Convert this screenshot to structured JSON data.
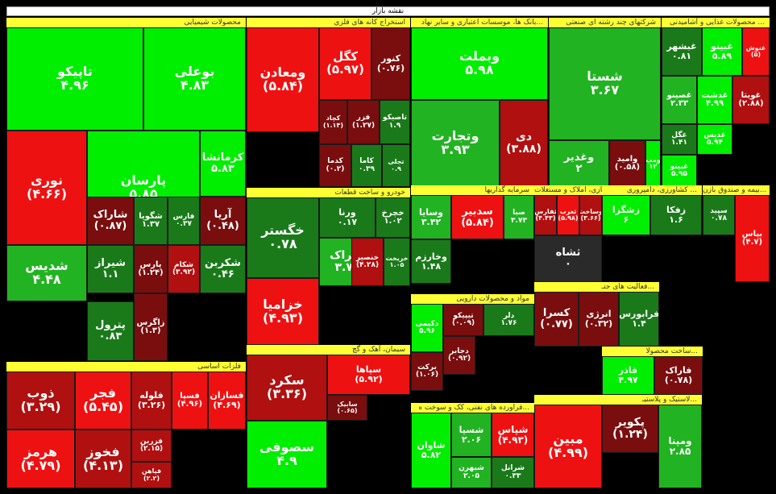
{
  "title": "نقشه بازار",
  "colors": {
    "up_strong": "#00ee00",
    "up_mid": "#22b322",
    "up_weak": "#1a7a1a",
    "down_weak": "#7a0e0e",
    "down_mid": "#b01010",
    "down_strong": "#ee1111",
    "neutral": "#2a2a2a",
    "header": "#ffff33"
  },
  "chart_data": {
    "type": "treemap",
    "sectors": [
      {
        "name": "محصولات شیمیایی",
        "stocks": [
          {
            "symbol": "تاپیکو",
            "change": 4.96
          },
          {
            "symbol": "بوعلی",
            "change": 4.83
          },
          {
            "symbol": "نوری",
            "change": -4.66
          },
          {
            "symbol": "پارسان",
            "change": 5.85
          },
          {
            "symbol": "کرمانشا",
            "change": 5.83
          },
          {
            "symbol": "شاراک",
            "change": -0.87
          },
          {
            "symbol": "شگویا",
            "change": 1.37
          },
          {
            "symbol": "فارس",
            "change": 0.37
          },
          {
            "symbol": "آریا",
            "change": -0.48
          },
          {
            "symbol": "شدیس",
            "change": 4.48
          },
          {
            "symbol": "پارس",
            "change": -1.24
          },
          {
            "symbol": "شکام",
            "change": -3.92
          },
          {
            "symbol": "شکربن",
            "change": 0.46
          },
          {
            "symbol": "شیراز",
            "change": 1.1
          },
          {
            "symbol": "شپیمیر",
            "change": 0.46
          },
          {
            "symbol": "پترول",
            "change": 0.83
          },
          {
            "symbol": "زاگرس",
            "change": -1.3
          },
          {
            "symbol": "خراساز",
            "change": 1.62
          }
        ]
      },
      {
        "name": "استخراج کانه های فلزی",
        "stocks": [
          {
            "symbol": "ومعادن",
            "change": -5.84
          },
          {
            "symbol": "کگل",
            "change": -5.97
          },
          {
            "symbol": "کنور",
            "change": -0.76
          },
          {
            "symbol": "کچاد",
            "change": -1.14
          },
          {
            "symbol": "فزر",
            "change": -1.27
          },
          {
            "symbol": "تاصیکو",
            "change": 1.9
          },
          {
            "symbol": "کدما",
            "change": -0.2
          },
          {
            "symbol": "کاما",
            "change": 0.39
          },
          {
            "symbol": "تجلی",
            "change": 0.9
          }
        ]
      },
      {
        "name": "بانک ها، موسسات اعتباری و سایر نهاد...",
        "stocks": [
          {
            "symbol": "وبملت",
            "change": 5.98
          },
          {
            "symbol": "وتجارت",
            "change": 3.93
          },
          {
            "symbol": "دی",
            "change": -3.88
          }
        ]
      },
      {
        "name": "شرکتهای چند رشته ای صنعتی",
        "stocks": [
          {
            "symbol": "شستا",
            "change": 3.67
          },
          {
            "symbol": "وغدیر",
            "change": 2
          },
          {
            "symbol": "وامید",
            "change": -0.58
          },
          {
            "symbol": "ومپ",
            "change": 12
          }
        ]
      },
      {
        "name": "محصولات غذایی و آشامیدنی ...",
        "stocks": [
          {
            "symbol": "غنوش",
            "change": -5
          },
          {
            "symbol": "غبشهر",
            "change": 0.81
          },
          {
            "symbol": "غبینو",
            "change": 5.89
          },
          {
            "symbol": "غصینو",
            "change": 2.33
          },
          {
            "symbol": "غدشت",
            "change": 4.99
          },
          {
            "symbol": "غویتا",
            "change": -2.88
          },
          {
            "symbol": "غگل",
            "change": 1.41
          },
          {
            "symbol": "غدیس",
            "change": 5.94
          },
          {
            "symbol": "غبینو",
            "change": 5.95
          }
        ]
      },
      {
        "name": "خودرو و ساخت قطعات",
        "stocks": [
          {
            "symbol": "خگستر",
            "change": 0.78
          },
          {
            "symbol": "ورنا",
            "change": 0.17
          },
          {
            "symbol": "خچرخ",
            "change": 1.02
          },
          {
            "symbol": "خزامیا",
            "change": -4.93
          },
          {
            "symbol": "ختراک",
            "change": 3.78
          },
          {
            "symbol": "خنصیر",
            "change": -4.28
          },
          {
            "symbol": "خریخت",
            "change": 1.05
          }
        ]
      },
      {
        "name": "سرمایه گذاریها",
        "stocks": [
          {
            "symbol": "وسایا",
            "change": 3.42
          },
          {
            "symbol": "سدبیر",
            "change": -5.84
          },
          {
            "symbol": "صبا",
            "change": 3.73
          },
          {
            "symbol": "وخارزم",
            "change": 1.48
          }
        ]
      },
      {
        "name": "مواد و محصولات دارویی",
        "stocks": [
          {
            "symbol": "دکیمی",
            "change": 5.96
          },
          {
            "symbol": "تیپیکو",
            "change": -0.09
          },
          {
            "symbol": "دلر",
            "change": 1.76
          },
          {
            "symbol": "برکت",
            "change": -1.06
          },
          {
            "symbol": "دجابر",
            "change": -0.92
          }
        ]
      },
      {
        "name": "سیمان، آهک و گچ",
        "stocks": [
          {
            "symbol": "سکرد",
            "change": -3.36
          },
          {
            "symbol": "سپاها",
            "change": -5.92
          },
          {
            "symbol": "سصوفی",
            "change": 4.9
          },
          {
            "symbol": "سابیک",
            "change": -0.65
          }
        ]
      },
      {
        "name": "فلزات اساسی",
        "stocks": [
          {
            "symbol": "ذوب",
            "change": -3.29
          },
          {
            "symbol": "فجر",
            "change": -5.45
          },
          {
            "symbol": "فلوله",
            "change": -3.26
          },
          {
            "symbol": "فسپا",
            "change": -4.96
          },
          {
            "symbol": "فسازان",
            "change": -4.69
          },
          {
            "symbol": "فزرین",
            "change": -2.15
          },
          {
            "symbol": "هرمز",
            "change": -4.79
          },
          {
            "symbol": "فخوز",
            "change": -4.13
          },
          {
            "symbol": "فپاهن",
            "change": -2.2
          }
        ]
      },
      {
        "name": "انبوه سازی، املاک و مستغلات",
        "stocks": [
          {
            "symbol": "ثفارس",
            "change": -4.43
          },
          {
            "symbol": "ثغرب",
            "change": -5.98
          },
          {
            "symbol": "وساخت",
            "change": -3.66
          },
          {
            "symbol": "ثشاه",
            "change": 0.0
          }
        ]
      },
      {
        "name": "کشاورزی، دامپروری ...",
        "stocks": [
          {
            "symbol": "زشگزا",
            "change": 6
          },
          {
            "symbol": "زفکا",
            "change": 1.6
          }
        ]
      },
      {
        "name": "بیمه و صندوق بازن...",
        "stocks": [
          {
            "symbol": "سپید",
            "change": 0.78
          },
          {
            "symbol": "بپاس",
            "change": -4.7
          }
        ]
      },
      {
        "name": "فعالیت های جنـ...",
        "stocks": [
          {
            "symbol": "کسرا",
            "change": -0.77
          },
          {
            "symbol": "انرژی",
            "change": -0.32
          },
          {
            "symbol": "فرابورس",
            "change": 1.4
          }
        ]
      },
      {
        "name": "ساخت محصولا...",
        "stocks": [
          {
            "symbol": "فاذر",
            "change": 4.97
          },
          {
            "symbol": "فاراک",
            "change": -0.78
          }
        ]
      },
      {
        "name": "فراورده های نفتی، کک و سوخت ه...",
        "stocks": [
          {
            "symbol": "شاوان",
            "change": 5.82
          },
          {
            "symbol": "شسپا",
            "change": 2.06
          },
          {
            "symbol": "شپاس",
            "change": -4.93
          },
          {
            "symbol": "شبهرن",
            "change": 2.05
          },
          {
            "symbol": "شرانل",
            "change": 0.33
          }
        ]
      },
      {
        "name": "لاستیک و پلاستیـ...",
        "stocks": [
          {
            "symbol": "مبین",
            "change": -4.99
          },
          {
            "symbol": "پکویر",
            "change": -1.24
          },
          {
            "symbol": "ومپنا",
            "change": 2.85
          }
        ]
      }
    ]
  }
}
